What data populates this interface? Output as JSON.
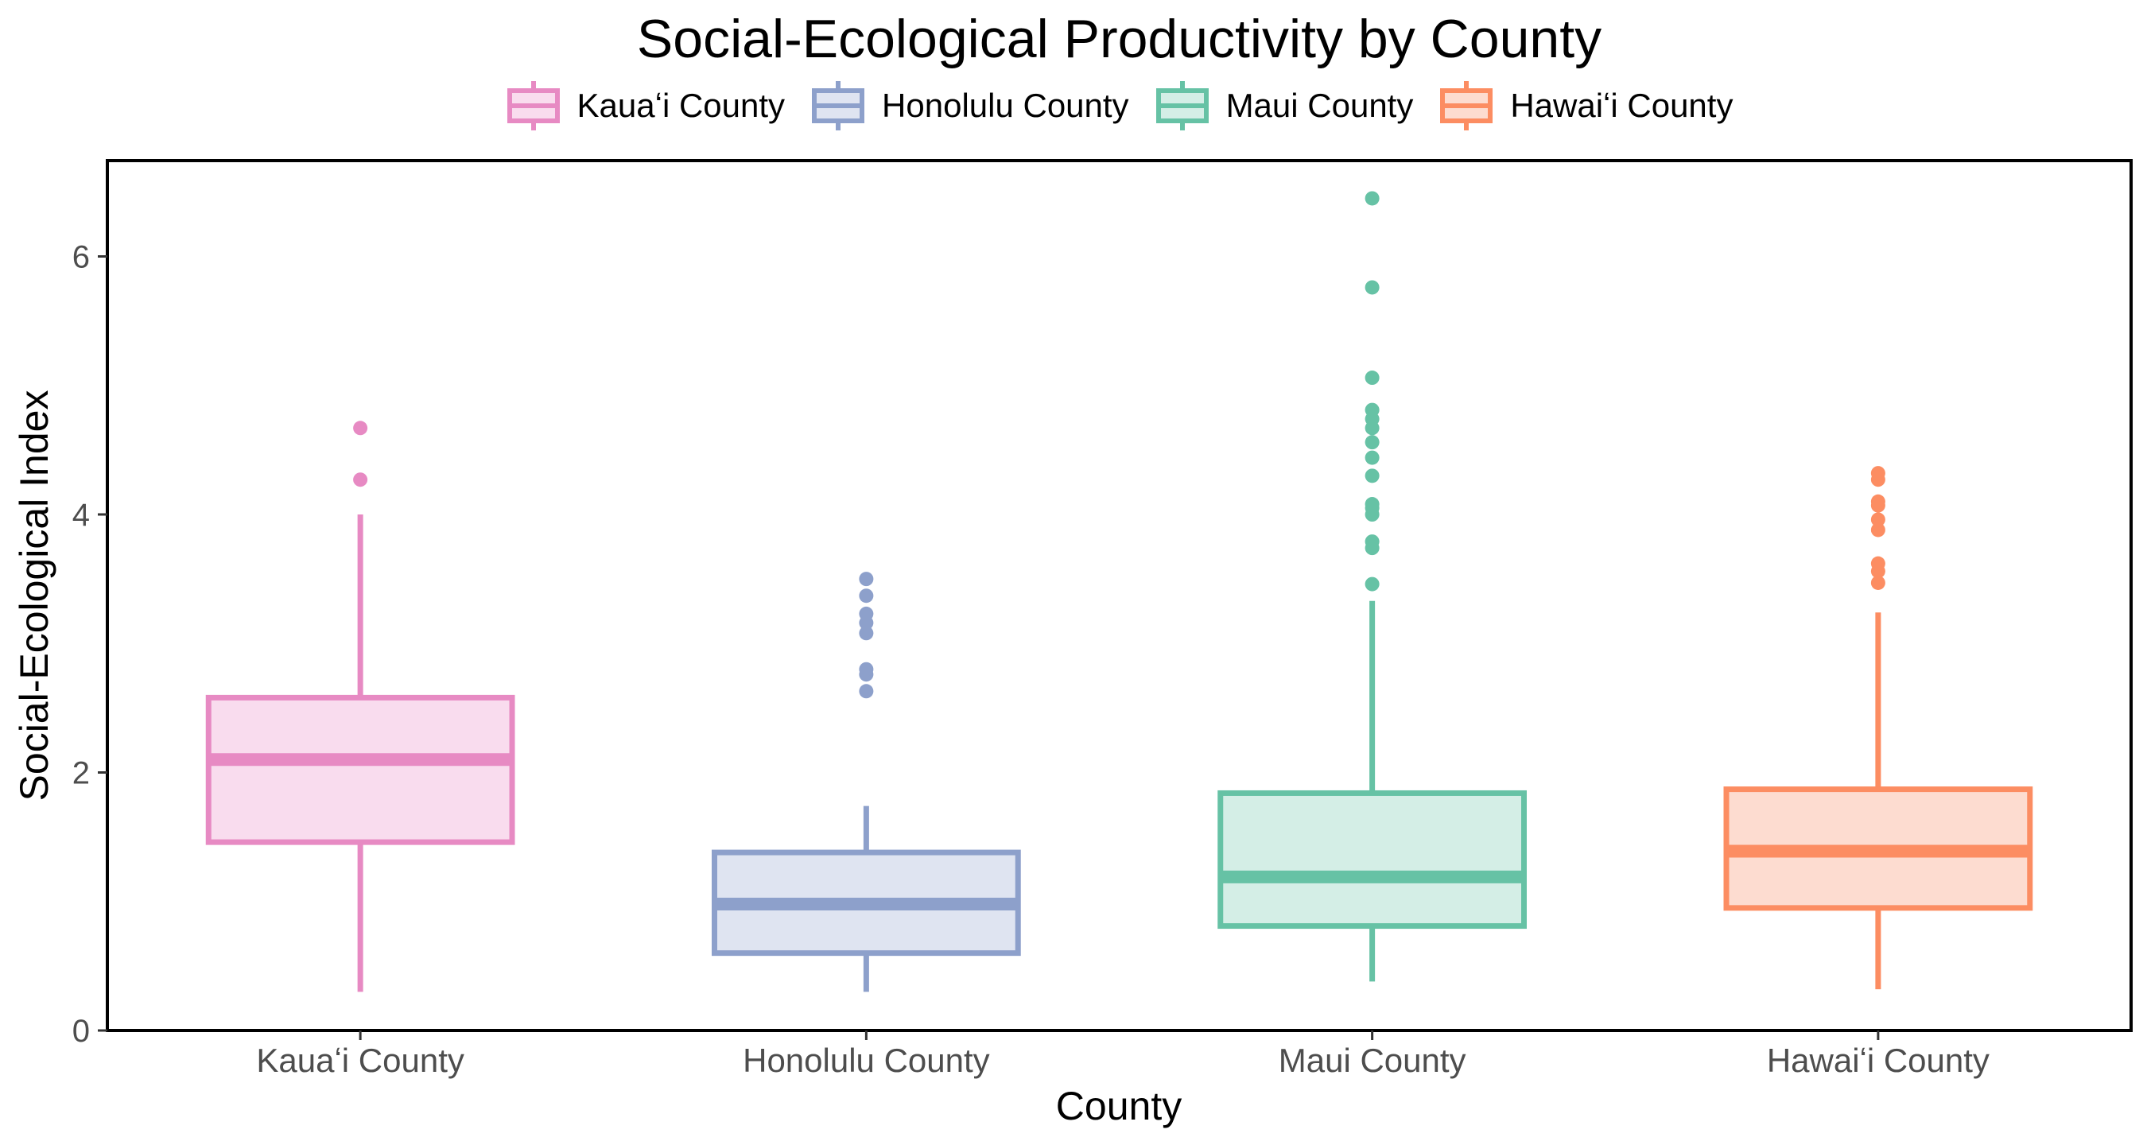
{
  "chart_data": {
    "type": "boxplot",
    "title": "Social-Ecological Productivity by County",
    "xlabel": "County",
    "ylabel": "Social-Ecological Index",
    "ylim": [
      0,
      6.75
    ],
    "yticks": [
      0,
      2,
      4,
      6
    ],
    "grid": false,
    "legend_position": "top",
    "categories": [
      "Kauaʻi County",
      "Honolulu County",
      "Maui County",
      "Hawaiʻi County"
    ],
    "series": [
      {
        "name": "Kauaʻi County",
        "color": "#E78AC3",
        "fill": "#F9DCEE",
        "whisker_low": 0.3,
        "q1": 1.46,
        "median": 2.1,
        "q3": 2.58,
        "whisker_high": 4.0,
        "outliers": [
          4.27,
          4.67
        ]
      },
      {
        "name": "Honolulu County",
        "color": "#8DA0CB",
        "fill": "#DFE4F1",
        "whisker_low": 0.3,
        "q1": 0.6,
        "median": 0.98,
        "q3": 1.38,
        "whisker_high": 1.74,
        "outliers": [
          2.63,
          2.76,
          2.8,
          3.08,
          3.16,
          3.23,
          3.37,
          3.5
        ]
      },
      {
        "name": "Maui County",
        "color": "#66C2A5",
        "fill": "#D4EEE6",
        "whisker_low": 0.38,
        "q1": 0.81,
        "median": 1.19,
        "q3": 1.84,
        "whisker_high": 3.33,
        "outliers": [
          3.46,
          3.74,
          3.79,
          4.0,
          4.05,
          4.08,
          4.3,
          4.44,
          4.56,
          4.67,
          4.74,
          4.81,
          5.06,
          5.76,
          6.45
        ]
      },
      {
        "name": "Hawaiʻi County",
        "color": "#FC8D62",
        "fill": "#FDDCD0",
        "whisker_low": 0.32,
        "q1": 0.95,
        "median": 1.39,
        "q3": 1.87,
        "whisker_high": 3.24,
        "outliers": [
          3.47,
          3.56,
          3.62,
          3.88,
          3.96,
          4.07,
          4.1,
          4.27,
          4.32
        ]
      }
    ]
  }
}
